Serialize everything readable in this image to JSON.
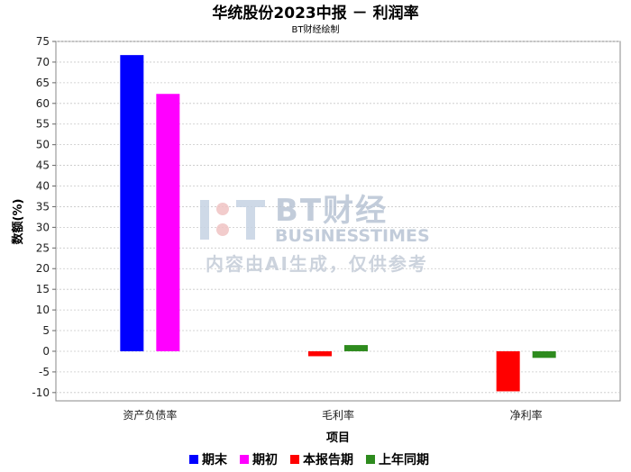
{
  "chart_data": {
    "type": "bar",
    "title": "华统股份2023中报 － 利润率",
    "subtitle": "BT财经绘制",
    "xlabel": "项目",
    "ylabel": "数额(%)",
    "ylim": [
      -12,
      75
    ],
    "yticks": [
      -10,
      -5,
      0,
      5,
      10,
      15,
      20,
      25,
      30,
      35,
      40,
      45,
      50,
      55,
      60,
      65,
      70,
      75
    ],
    "grid": true,
    "legend_position": "bottom",
    "categories": [
      "资产负债率",
      "毛利率",
      "净利率"
    ],
    "series": [
      {
        "name": "期末",
        "color": "#0000ff",
        "values": [
          71.7,
          null,
          null
        ]
      },
      {
        "name": "期初",
        "color": "#ff00ff",
        "values": [
          62.3,
          null,
          null
        ]
      },
      {
        "name": "本报告期",
        "color": "#ff0000",
        "values": [
          null,
          -1.2,
          -9.7
        ]
      },
      {
        "name": "上年同期",
        "color": "#2e8b1e",
        "values": [
          null,
          1.5,
          -1.6
        ]
      }
    ]
  },
  "watermark": {
    "brand_cn": "BT财经",
    "brand_en": "BUSINESSTIMES",
    "notice": "内容由AI生成，仅供参考"
  }
}
